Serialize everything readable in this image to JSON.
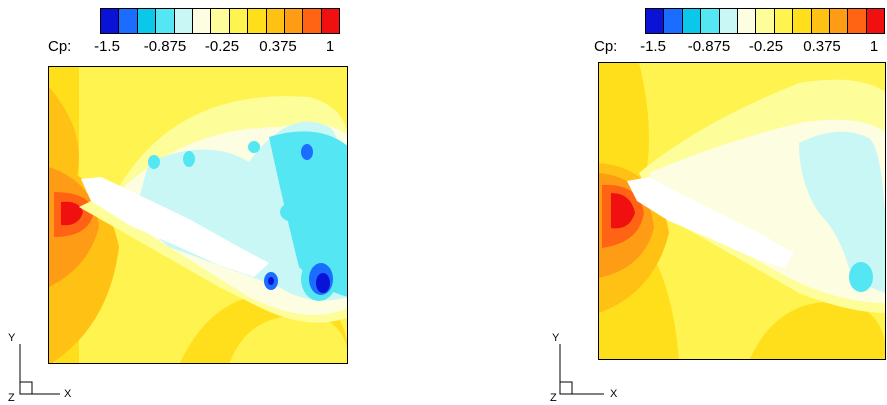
{
  "chart_data": [
    {
      "type": "heatmap",
      "legend_title": "Cp:",
      "colorbar_ticks": [
        "-1.5",
        "-0.875",
        "-0.25",
        "0.375",
        "1"
      ],
      "colorbar_range": [
        -1.5,
        1
      ],
      "colorbar_levels": 13,
      "colorbar_colors": [
        "#0a12d6",
        "#1b6dff",
        "#0bc8ea",
        "#54e6f2",
        "#c9f7f5",
        "#fdfde2",
        "#fdfd9a",
        "#fff350",
        "#ffdf1c",
        "#ffc214",
        "#ff9c16",
        "#ff6414",
        "#f01010"
      ],
      "axes": {
        "x": "X",
        "y": "Y",
        "z": "Z"
      },
      "legend_placement": "top"
    },
    {
      "type": "heatmap",
      "legend_title": "Cp:",
      "colorbar_ticks": [
        "-1.5",
        "-0.875",
        "-0.25",
        "0.375",
        "1"
      ],
      "colorbar_range": [
        -1.5,
        1
      ],
      "colorbar_levels": 13,
      "colorbar_colors": [
        "#0a12d6",
        "#1b6dff",
        "#0bc8ea",
        "#54e6f2",
        "#c9f7f5",
        "#fdfde2",
        "#fdfd9a",
        "#fff350",
        "#ffdf1c",
        "#ffc214",
        "#ff9c16",
        "#ff6414",
        "#f01010"
      ],
      "axes": {
        "x": "X",
        "y": "Y",
        "z": "Z"
      },
      "legend_placement": "top"
    }
  ]
}
